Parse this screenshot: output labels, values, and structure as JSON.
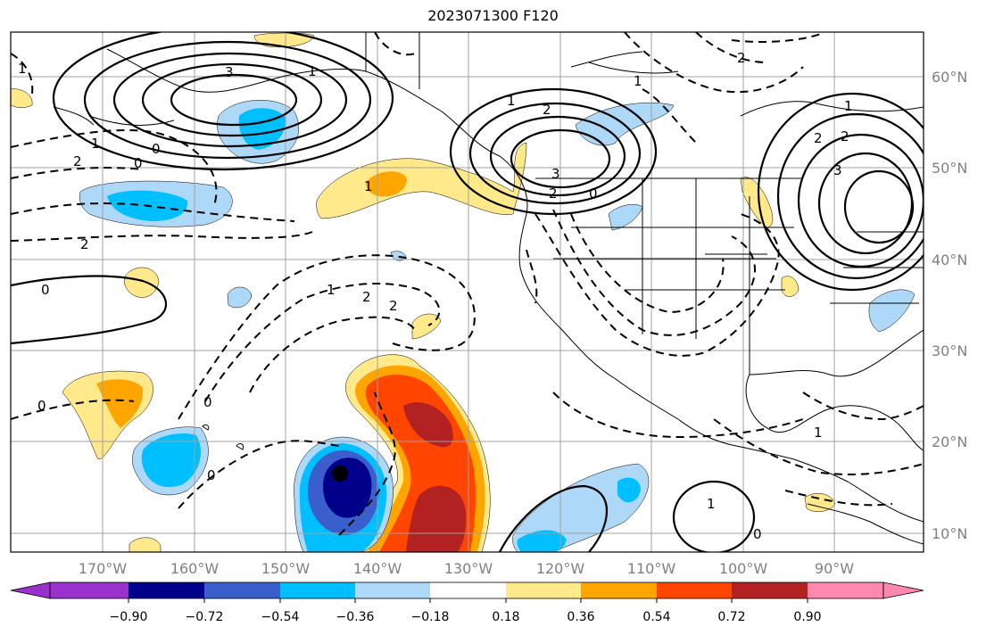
{
  "title": "2023071300 F120",
  "lon_labels": [
    "170°W",
    "160°W",
    "150°W",
    "140°W",
    "130°W",
    "120°W",
    "110°W",
    "100°W",
    "90°W"
  ],
  "lat_labels": [
    "60°N",
    "50°N",
    "40°N",
    "30°N",
    "20°N",
    "10°N"
  ],
  "colorbar": {
    "ticks": [
      "−0.90",
      "−0.72",
      "−0.54",
      "−0.36",
      "−0.18",
      "0.18",
      "0.36",
      "0.54",
      "0.72",
      "0.90"
    ],
    "colors": [
      "#9932cc",
      "#00008b",
      "#3a5fcd",
      "#00bfff",
      "#add8f7",
      "#ffffff",
      "#ffe98a",
      "#ffa500",
      "#ff4500",
      "#b22222",
      "#ff88b0"
    ]
  },
  "contour_labels": [
    "1",
    "3",
    "1",
    "0",
    "1",
    "2",
    "3",
    "2",
    "0",
    "1",
    "2",
    "3",
    "2",
    "1",
    "2",
    "0",
    "2",
    "1",
    "0",
    "1",
    "2",
    "2",
    "0",
    "0",
    "0",
    "1",
    "1",
    "0",
    "1",
    "2"
  ],
  "marker": "storm-center"
}
